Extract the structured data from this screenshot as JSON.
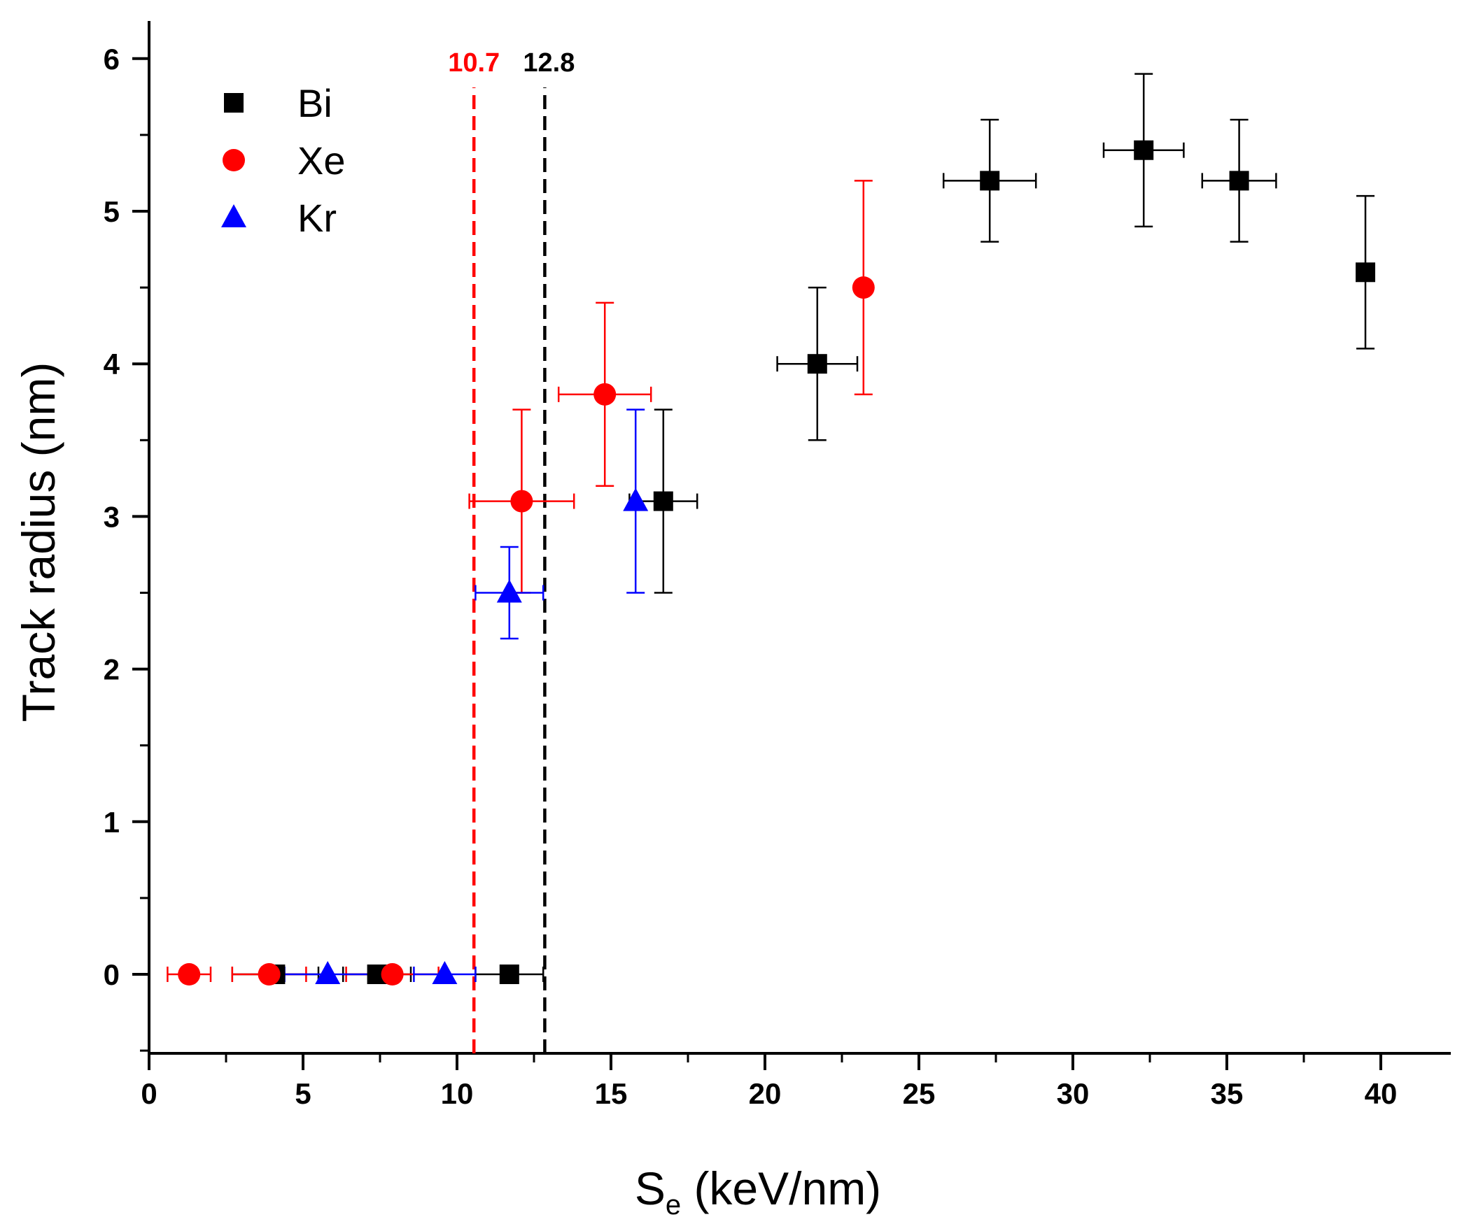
{
  "chart_data": {
    "type": "scatter",
    "title": "",
    "xlabel": {
      "main": "S",
      "sub": "e",
      "rest": " (keV/nm)"
    },
    "ylabel": "Track radius (nm)",
    "xlim": [
      0,
      42.5
    ],
    "ylim": [
      -0.5,
      6.3
    ],
    "xticks": [
      0,
      5,
      10,
      15,
      20,
      25,
      30,
      35,
      40
    ],
    "yticks": [
      0,
      1,
      2,
      3,
      4,
      5,
      6
    ],
    "legend_position": "top-left",
    "grid": false,
    "thresholds": [
      {
        "label": "10.7",
        "x": 10.55,
        "color": "#ff0000"
      },
      {
        "label": "12.8",
        "x": 12.85,
        "color": "#000000"
      }
    ],
    "series": [
      {
        "name": "Bi",
        "marker": "square",
        "color": "#000000",
        "points": [
          {
            "x": 4.1,
            "y": 0,
            "xerr": 1.4,
            "yerr": 0
          },
          {
            "x": 7.4,
            "y": 0,
            "xerr": 1.1,
            "yerr": 0
          },
          {
            "x": 11.7,
            "y": 0,
            "xerr": 1.1,
            "yerr": 0
          },
          {
            "x": 16.7,
            "y": 3.1,
            "xerr": 1.1,
            "yerr": 0.6
          },
          {
            "x": 21.7,
            "y": 4.0,
            "xerr": 1.3,
            "yerr": 0.5
          },
          {
            "x": 27.3,
            "y": 5.2,
            "xerr": 1.5,
            "yerr": 0.4
          },
          {
            "x": 32.3,
            "y": 5.4,
            "xerr": 1.3,
            "yerr": 0.5
          },
          {
            "x": 35.4,
            "y": 5.2,
            "xerr": 1.2,
            "yerr": 0.4
          },
          {
            "x": 39.5,
            "y": 4.6,
            "xerr": 0,
            "yerr": 0.5
          }
        ]
      },
      {
        "name": "Xe",
        "marker": "circle",
        "color": "#ff0000",
        "points": [
          {
            "x": 1.3,
            "y": 0,
            "xerr": 0.7,
            "yerr": 0
          },
          {
            "x": 3.9,
            "y": 0,
            "xerr": 1.2,
            "yerr": 0
          },
          {
            "x": 7.9,
            "y": 0,
            "xerr": 1.5,
            "yerr": 0
          },
          {
            "x": 12.1,
            "y": 3.1,
            "xerr": 1.7,
            "yerr": 0.6
          },
          {
            "x": 14.8,
            "y": 3.8,
            "xerr": 1.5,
            "yerr": 0.6
          },
          {
            "x": 23.2,
            "y": 4.5,
            "xerr": 0,
            "yerr": 0.7
          }
        ]
      },
      {
        "name": "Kr",
        "marker": "triangle",
        "color": "#0000ff",
        "points": [
          {
            "x": 5.8,
            "y": 0,
            "xerr": 1.4,
            "yerr": 0
          },
          {
            "x": 9.6,
            "y": 0,
            "xerr": 1.0,
            "yerr": 0
          },
          {
            "x": 11.7,
            "y": 2.5,
            "xerr": 1.1,
            "yerr": 0.3
          },
          {
            "x": 15.8,
            "y": 3.1,
            "xerr": 0,
            "yerr": 0.6
          }
        ]
      }
    ]
  }
}
